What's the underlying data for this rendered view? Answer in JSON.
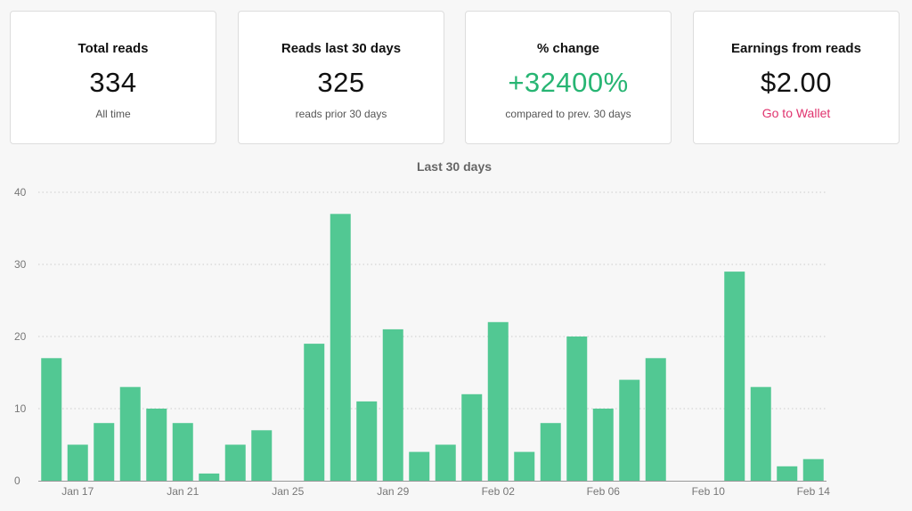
{
  "stats": [
    {
      "label": "Total reads",
      "value": "334",
      "sub": "All time"
    },
    {
      "label": "Reads last 30 days",
      "value": "325",
      "sub": "reads prior 30 days"
    },
    {
      "label": "% change",
      "value": "+32400%",
      "sub": "compared to prev. 30 days"
    },
    {
      "label": "Earnings from reads",
      "value": "$2.00",
      "link": "Go to Wallet"
    }
  ],
  "colors": {
    "bar": "#52c893",
    "positive": "#27b573",
    "link": "#e0336e",
    "grid": "#cccccc"
  },
  "chart_data": {
    "type": "bar",
    "title": "Last 30 days",
    "xlabel": "",
    "ylabel": "",
    "ylim": [
      0,
      40
    ],
    "yticks": [
      0,
      10,
      20,
      30,
      40
    ],
    "grid": true,
    "categories": [
      "Jan 16",
      "Jan 17",
      "Jan 18",
      "Jan 19",
      "Jan 20",
      "Jan 21",
      "Jan 22",
      "Jan 23",
      "Jan 24",
      "Jan 25",
      "Jan 26",
      "Jan 27",
      "Jan 28",
      "Jan 29",
      "Jan 30",
      "Jan 31",
      "Feb 01",
      "Feb 02",
      "Feb 03",
      "Feb 04",
      "Feb 05",
      "Feb 06",
      "Feb 07",
      "Feb 08",
      "Feb 09",
      "Feb 10",
      "Feb 11",
      "Feb 12",
      "Feb 13",
      "Feb 14"
    ],
    "xtick_labels": [
      "Jan 17",
      "Jan 21",
      "Jan 25",
      "Jan 29",
      "Feb 02",
      "Feb 06",
      "Feb 10",
      "Feb 14"
    ],
    "series": [
      {
        "values": [
          17,
          5,
          8,
          13,
          10,
          8,
          1,
          5,
          7,
          0,
          19,
          37,
          11,
          21,
          4,
          5,
          12,
          22,
          4,
          8,
          20,
          10,
          14,
          17,
          0,
          0,
          29,
          13,
          2,
          3
        ]
      }
    ]
  }
}
